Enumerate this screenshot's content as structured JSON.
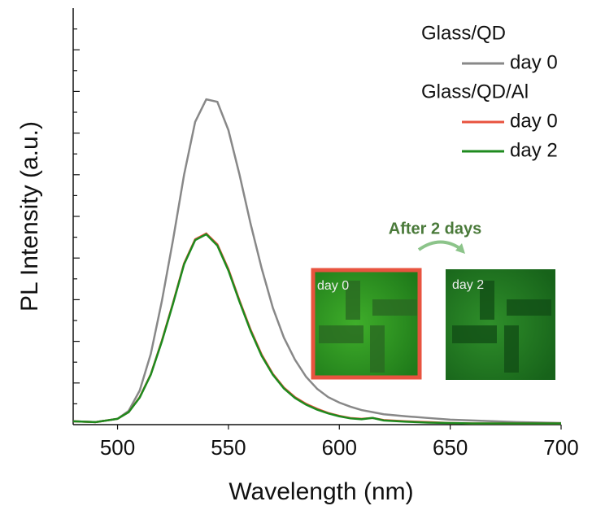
{
  "chart_data": {
    "type": "line",
    "x_label": "Wavelength (nm)",
    "y_label": "PL Intensity (a.u.)",
    "x": [
      480,
      490,
      500,
      505,
      510,
      515,
      520,
      525,
      530,
      535,
      540,
      545,
      550,
      555,
      560,
      565,
      570,
      575,
      580,
      585,
      590,
      595,
      600,
      605,
      610,
      615,
      620,
      630,
      640,
      650,
      660,
      680,
      700
    ],
    "xlim": [
      480,
      700
    ],
    "xticks": [
      500,
      550,
      600,
      650,
      700
    ],
    "ylim": [
      0,
      1
    ],
    "yticks": [
      0.05,
      0.1,
      0.15,
      0.2,
      0.25,
      0.3,
      0.35,
      0.4,
      0.45,
      0.5,
      0.55,
      0.6,
      0.65,
      0.7,
      0.75,
      0.8,
      0.85,
      0.9,
      0.95
    ],
    "legend_groups": [
      "Glass/QD",
      "Glass/QD/Al"
    ],
    "series": [
      {
        "name": "day 0",
        "color": "#888888",
        "values": [
          0.008,
          0.006,
          0.014,
          0.033,
          0.082,
          0.17,
          0.297,
          0.443,
          0.6,
          0.727,
          0.781,
          0.775,
          0.707,
          0.6,
          0.482,
          0.375,
          0.281,
          0.209,
          0.156,
          0.115,
          0.086,
          0.066,
          0.053,
          0.043,
          0.035,
          0.03,
          0.025,
          0.02,
          0.016,
          0.012,
          0.01,
          0.006,
          0.004
        ]
      },
      {
        "name": "day 0",
        "color": "#e8533f",
        "values": [
          0.008,
          0.006,
          0.014,
          0.03,
          0.066,
          0.121,
          0.202,
          0.292,
          0.387,
          0.445,
          0.459,
          0.433,
          0.373,
          0.298,
          0.228,
          0.168,
          0.122,
          0.089,
          0.066,
          0.05,
          0.038,
          0.028,
          0.021,
          0.016,
          0.014,
          0.016,
          0.011,
          0.008,
          0.006,
          0.004,
          0.003,
          0.003,
          0.003
        ]
      },
      {
        "name": "day 2",
        "color": "#1e8a1e",
        "values": [
          0.008,
          0.006,
          0.014,
          0.03,
          0.065,
          0.12,
          0.2,
          0.29,
          0.385,
          0.443,
          0.457,
          0.43,
          0.37,
          0.295,
          0.225,
          0.165,
          0.12,
          0.087,
          0.064,
          0.048,
          0.036,
          0.027,
          0.02,
          0.015,
          0.013,
          0.016,
          0.01,
          0.007,
          0.005,
          0.004,
          0.003,
          0.003,
          0.003
        ]
      }
    ],
    "inset": {
      "annotation": "After 2 days",
      "labels": [
        "day 0",
        "day 2"
      ]
    }
  }
}
